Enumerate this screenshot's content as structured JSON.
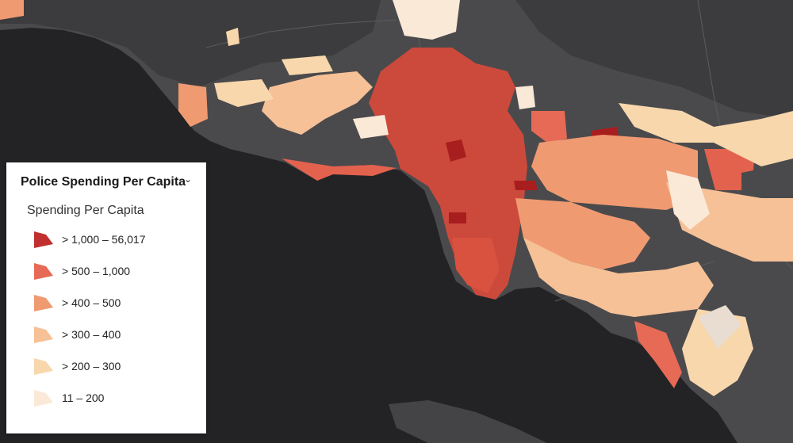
{
  "legend": {
    "title": "Police Spending Per Capita",
    "subtitle": "Spending Per Capita",
    "collapse_icon": "chevron-down-icon",
    "classes": [
      {
        "label": "> 1,000 – 56,017",
        "color": "#c0302e"
      },
      {
        "label": "> 500 – 1,000",
        "color": "#e66a55"
      },
      {
        "label": "> 400 – 500",
        "color": "#f09a72"
      },
      {
        "label": "> 300 – 400",
        "color": "#f6c197"
      },
      {
        "label": "> 200 – 300",
        "color": "#f8d7ad"
      },
      {
        "label": "11 – 200",
        "color": "#fbe9d8"
      }
    ]
  },
  "map": {
    "basemap": "dark-gray-canvas",
    "colors": {
      "ocean": "#232326",
      "land": "#4a4a4c",
      "land_dark": "#3e3e40",
      "boundary": "#5c5c5e"
    }
  }
}
